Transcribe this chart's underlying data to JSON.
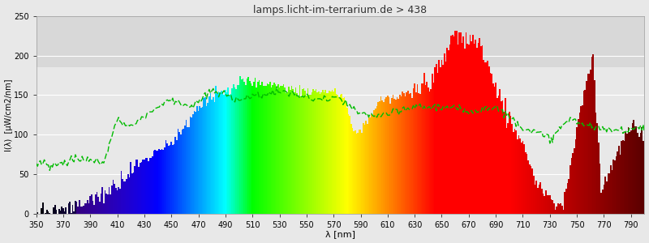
{
  "title": "lamps.licht-im-terrarium.de > 438",
  "xlabel": "λ [nm]",
  "ylabel": "I(λ)  [µW/cm2/nm]",
  "xlim": [
    350,
    800
  ],
  "ylim": [
    0,
    250
  ],
  "yticks": [
    0,
    50,
    100,
    150,
    200,
    250
  ],
  "xticks": [
    350,
    370,
    390,
    410,
    430,
    450,
    470,
    490,
    510,
    530,
    550,
    570,
    590,
    610,
    630,
    650,
    670,
    690,
    710,
    730,
    750,
    770,
    790
  ],
  "background_color": "#e8e8e8",
  "plot_bg_color": "#e8e8e8",
  "title_color": "#333333",
  "grid_color": "#ffffff",
  "green_line_color": "#00bb00",
  "figsize": [
    8.0,
    3.0
  ],
  "dpi": 100,
  "gray_band_y1": 185,
  "gray_band_y2": 250,
  "gray_band_color": "#d8d8d8"
}
